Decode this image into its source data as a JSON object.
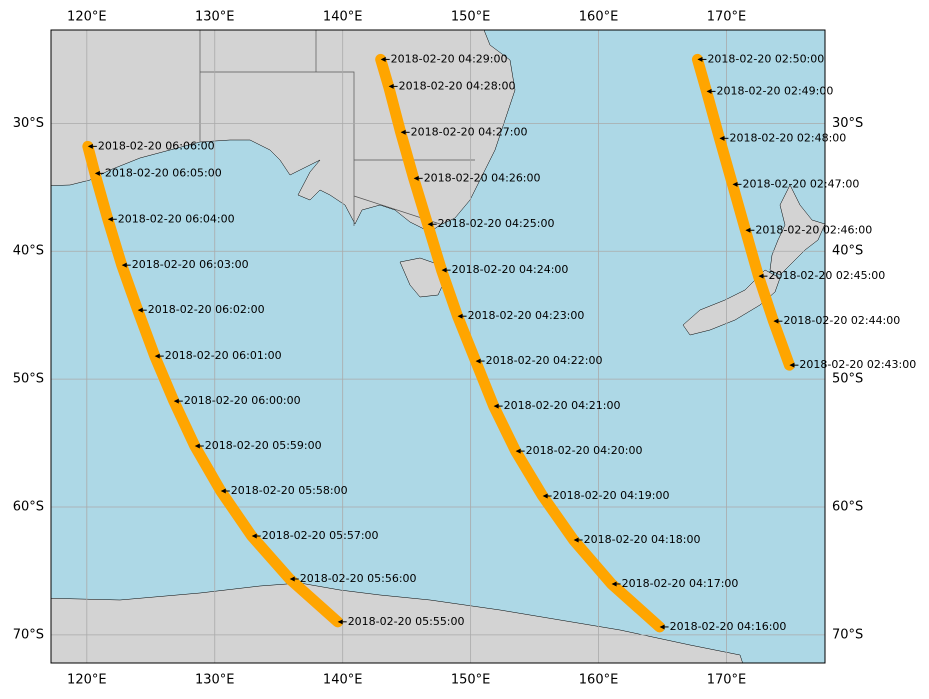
{
  "chart_data": {
    "type": "map",
    "xlim": [
      117.2,
      177.7
    ],
    "ylim": [
      -72.2,
      -22.7
    ],
    "grid": true,
    "xticks": [
      {
        "value": 120,
        "label": "120°E"
      },
      {
        "value": 130,
        "label": "130°E"
      },
      {
        "value": 140,
        "label": "140°E"
      },
      {
        "value": 150,
        "label": "150°E"
      },
      {
        "value": 160,
        "label": "160°E"
      },
      {
        "value": 170,
        "label": "170°E"
      }
    ],
    "yticks": [
      {
        "value": -30,
        "label": "30°S"
      },
      {
        "value": -40,
        "label": "40°S"
      },
      {
        "value": -50,
        "label": "50°S"
      },
      {
        "value": -60,
        "label": "60°S"
      },
      {
        "value": -70,
        "label": "70°S"
      }
    ],
    "series": [
      {
        "color": "#ffa500",
        "x": [
          120.08,
          120.63,
          121.64,
          122.73,
          123.98,
          125.31,
          126.8,
          128.44,
          130.47,
          132.89,
          135.86,
          139.61
        ],
        "y": [
          -31.8,
          -33.91,
          -37.5,
          -41.09,
          -44.61,
          -48.2,
          -51.72,
          -55.23,
          -58.75,
          -62.27,
          -65.63,
          -68.98
        ],
        "annotations": [
          "2018-02-20 06:06:00",
          "2018-02-20 06:05:00",
          "2018-02-20 06:04:00",
          "2018-02-20 06:03:00",
          "2018-02-20 06:02:00",
          "2018-02-20 06:01:00",
          "2018-02-20 06:00:00",
          "2018-02-20 05:59:00",
          "2018-02-20 05:58:00",
          "2018-02-20 05:57:00",
          "2018-02-20 05:56:00",
          "2018-02-20 05:55:00"
        ]
      },
      {
        "color": "#ffa500",
        "x": [
          142.97,
          143.59,
          144.53,
          145.55,
          146.64,
          147.73,
          148.98,
          150.39,
          151.8,
          153.52,
          155.63,
          158.05,
          161.02,
          164.77
        ],
        "y": [
          -25.0,
          -27.11,
          -30.7,
          -34.3,
          -37.89,
          -41.48,
          -45.08,
          -48.59,
          -52.11,
          -55.63,
          -59.14,
          -62.58,
          -66.02,
          -69.38
        ],
        "annotations": [
          "2018-02-20 04:29:00",
          "2018-02-20 04:28:00",
          "2018-02-20 04:27:00",
          "2018-02-20 04:26:00",
          "2018-02-20 04:25:00",
          "2018-02-20 04:24:00",
          "2018-02-20 04:23:00",
          "2018-02-20 04:22:00",
          "2018-02-20 04:21:00",
          "2018-02-20 04:20:00",
          "2018-02-20 04:19:00",
          "2018-02-20 04:18:00",
          "2018-02-20 04:17:00",
          "2018-02-20 04:16:00"
        ]
      },
      {
        "color": "#ffa500",
        "x": [
          167.73,
          168.44,
          169.45,
          170.47,
          171.48,
          172.5,
          173.67,
          174.92
        ],
        "y": [
          -25.0,
          -27.5,
          -31.17,
          -34.77,
          -38.36,
          -41.95,
          -45.47,
          -48.91
        ],
        "annotations": [
          "2018-02-20 02:50:00",
          "2018-02-20 02:49:00",
          "2018-02-20 02:48:00",
          "2018-02-20 02:47:00",
          "2018-02-20 02:46:00",
          "2018-02-20 02:45:00",
          "2018-02-20 02:44:00",
          "2018-02-20 02:43:00"
        ]
      }
    ]
  }
}
